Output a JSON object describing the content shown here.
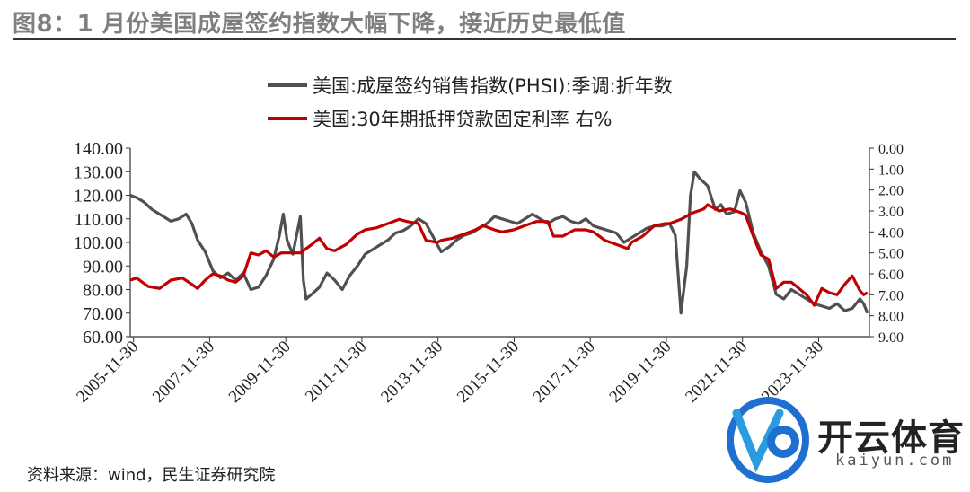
{
  "header": {
    "title": "图8：1 月份美国成屋签约指数大幅下降，接近历史最低值"
  },
  "footer": {
    "source": "资料来源：wind，民生证券研究院"
  },
  "watermark": {
    "brand": "开云体育",
    "sub": "kaiyun.com"
  },
  "chart_data": {
    "type": "line",
    "legend_placement": "top-center",
    "grid": false,
    "x_tick_labels": [
      "2005-11-30",
      "2007-11-30",
      "2009-11-30",
      "2011-11-30",
      "2013-11-30",
      "2015-11-30",
      "2017-11-30",
      "2019-11-30",
      "2021-11-30",
      "2023-11-30"
    ],
    "x_range": [
      2005.83,
      2025.25
    ],
    "left_axis": {
      "range": [
        60,
        140
      ],
      "ticks": [
        "60.00",
        "70.00",
        "80.00",
        "90.00",
        "100.00",
        "110.00",
        "120.00",
        "130.00",
        "140.00"
      ]
    },
    "right_axis": {
      "range": [
        0,
        9
      ],
      "inverted": true,
      "ticks": [
        "0.00",
        "1.00",
        "2.00",
        "3.00",
        "4.00",
        "5.00",
        "6.00",
        "7.00",
        "8.00",
        "9.00"
      ]
    },
    "series": [
      {
        "name": "美国:成屋签约销售指数(PHSI):季调:折年数",
        "axis": "left",
        "color": "#505050",
        "points": [
          [
            2005.83,
            120
          ],
          [
            2006.0,
            119
          ],
          [
            2006.2,
            117
          ],
          [
            2006.4,
            114
          ],
          [
            2006.6,
            112
          ],
          [
            2006.9,
            109
          ],
          [
            2007.1,
            110
          ],
          [
            2007.3,
            112
          ],
          [
            2007.45,
            108
          ],
          [
            2007.6,
            101
          ],
          [
            2007.8,
            96
          ],
          [
            2008.0,
            88
          ],
          [
            2008.2,
            85
          ],
          [
            2008.4,
            87
          ],
          [
            2008.6,
            84
          ],
          [
            2008.8,
            87
          ],
          [
            2009.0,
            80
          ],
          [
            2009.2,
            81
          ],
          [
            2009.4,
            86
          ],
          [
            2009.6,
            93
          ],
          [
            2009.75,
            103
          ],
          [
            2009.85,
            112
          ],
          [
            2009.95,
            101
          ],
          [
            2010.1,
            95
          ],
          [
            2010.3,
            111
          ],
          [
            2010.38,
            84
          ],
          [
            2010.45,
            76
          ],
          [
            2010.6,
            78
          ],
          [
            2010.8,
            81
          ],
          [
            2011.0,
            87
          ],
          [
            2011.2,
            84
          ],
          [
            2011.4,
            80
          ],
          [
            2011.6,
            86
          ],
          [
            2011.8,
            90
          ],
          [
            2012.0,
            95
          ],
          [
            2012.2,
            97
          ],
          [
            2012.4,
            99
          ],
          [
            2012.6,
            101
          ],
          [
            2012.8,
            104
          ],
          [
            2013.0,
            105
          ],
          [
            2013.2,
            107
          ],
          [
            2013.4,
            110
          ],
          [
            2013.6,
            108
          ],
          [
            2013.8,
            102
          ],
          [
            2014.0,
            96
          ],
          [
            2014.2,
            98
          ],
          [
            2014.4,
            101
          ],
          [
            2014.6,
            103
          ],
          [
            2014.8,
            104
          ],
          [
            2015.0,
            106
          ],
          [
            2015.2,
            108
          ],
          [
            2015.4,
            111
          ],
          [
            2015.6,
            110
          ],
          [
            2015.8,
            109
          ],
          [
            2016.0,
            108
          ],
          [
            2016.2,
            110
          ],
          [
            2016.4,
            112
          ],
          [
            2016.6,
            110
          ],
          [
            2016.8,
            108
          ],
          [
            2017.0,
            110
          ],
          [
            2017.2,
            111
          ],
          [
            2017.4,
            109
          ],
          [
            2017.6,
            108
          ],
          [
            2017.8,
            110
          ],
          [
            2018.0,
            107
          ],
          [
            2018.2,
            106
          ],
          [
            2018.4,
            105
          ],
          [
            2018.6,
            104
          ],
          [
            2018.8,
            100
          ],
          [
            2019.0,
            102
          ],
          [
            2019.2,
            104
          ],
          [
            2019.4,
            106
          ],
          [
            2019.6,
            107
          ],
          [
            2019.8,
            107
          ],
          [
            2020.0,
            108
          ],
          [
            2020.15,
            103
          ],
          [
            2020.3,
            70
          ],
          [
            2020.45,
            90
          ],
          [
            2020.55,
            120
          ],
          [
            2020.65,
            130
          ],
          [
            2020.8,
            127
          ],
          [
            2021.0,
            124
          ],
          [
            2021.2,
            114
          ],
          [
            2021.35,
            116
          ],
          [
            2021.5,
            112
          ],
          [
            2021.7,
            113
          ],
          [
            2021.85,
            122
          ],
          [
            2022.0,
            117
          ],
          [
            2022.2,
            104
          ],
          [
            2022.4,
            96
          ],
          [
            2022.6,
            90
          ],
          [
            2022.8,
            78
          ],
          [
            2023.0,
            76
          ],
          [
            2023.2,
            80
          ],
          [
            2023.4,
            78
          ],
          [
            2023.6,
            76
          ],
          [
            2023.8,
            74
          ],
          [
            2024.0,
            73
          ],
          [
            2024.2,
            72
          ],
          [
            2024.4,
            74
          ],
          [
            2024.6,
            71
          ],
          [
            2024.8,
            72
          ],
          [
            2025.0,
            76
          ],
          [
            2025.1,
            74
          ],
          [
            2025.2,
            70
          ]
        ]
      },
      {
        "name": "美国:30年期抵押贷款固定利率 右%",
        "axis": "right",
        "color": "#c00000",
        "points": [
          [
            2005.83,
            6.3
          ],
          [
            2006.0,
            6.2
          ],
          [
            2006.3,
            6.6
          ],
          [
            2006.6,
            6.7
          ],
          [
            2006.9,
            6.3
          ],
          [
            2007.2,
            6.2
          ],
          [
            2007.45,
            6.5
          ],
          [
            2007.6,
            6.7
          ],
          [
            2007.8,
            6.3
          ],
          [
            2008.0,
            6.0
          ],
          [
            2008.2,
            6.1
          ],
          [
            2008.4,
            6.3
          ],
          [
            2008.6,
            6.4
          ],
          [
            2008.8,
            6.1
          ],
          [
            2009.0,
            5.0
          ],
          [
            2009.2,
            5.1
          ],
          [
            2009.4,
            4.9
          ],
          [
            2009.6,
            5.2
          ],
          [
            2009.8,
            5.0
          ],
          [
            2010.0,
            5.0
          ],
          [
            2010.3,
            5.0
          ],
          [
            2010.6,
            4.6
          ],
          [
            2010.8,
            4.3
          ],
          [
            2011.0,
            4.8
          ],
          [
            2011.2,
            4.9
          ],
          [
            2011.5,
            4.6
          ],
          [
            2011.8,
            4.1
          ],
          [
            2012.0,
            3.9
          ],
          [
            2012.3,
            3.8
          ],
          [
            2012.6,
            3.6
          ],
          [
            2012.9,
            3.4
          ],
          [
            2013.1,
            3.5
          ],
          [
            2013.4,
            3.6
          ],
          [
            2013.6,
            4.4
          ],
          [
            2013.9,
            4.5
          ],
          [
            2014.0,
            4.4
          ],
          [
            2014.3,
            4.3
          ],
          [
            2014.6,
            4.1
          ],
          [
            2014.9,
            3.9
          ],
          [
            2015.1,
            3.7
          ],
          [
            2015.4,
            3.9
          ],
          [
            2015.6,
            4.0
          ],
          [
            2015.9,
            3.9
          ],
          [
            2016.2,
            3.7
          ],
          [
            2016.5,
            3.5
          ],
          [
            2016.8,
            3.5
          ],
          [
            2016.95,
            4.2
          ],
          [
            2017.2,
            4.2
          ],
          [
            2017.5,
            3.9
          ],
          [
            2017.8,
            3.9
          ],
          [
            2018.0,
            4.0
          ],
          [
            2018.3,
            4.4
          ],
          [
            2018.6,
            4.6
          ],
          [
            2018.9,
            4.8
          ],
          [
            2019.0,
            4.5
          ],
          [
            2019.3,
            4.2
          ],
          [
            2019.6,
            3.7
          ],
          [
            2019.9,
            3.6
          ],
          [
            2020.0,
            3.6
          ],
          [
            2020.3,
            3.4
          ],
          [
            2020.6,
            3.1
          ],
          [
            2020.9,
            2.9
          ],
          [
            2021.0,
            2.7
          ],
          [
            2021.3,
            3.0
          ],
          [
            2021.6,
            2.9
          ],
          [
            2021.9,
            3.1
          ],
          [
            2022.0,
            3.2
          ],
          [
            2022.2,
            4.2
          ],
          [
            2022.4,
            5.1
          ],
          [
            2022.6,
            5.3
          ],
          [
            2022.8,
            6.7
          ],
          [
            2023.0,
            6.4
          ],
          [
            2023.2,
            6.4
          ],
          [
            2023.4,
            6.7
          ],
          [
            2023.6,
            7.0
          ],
          [
            2023.8,
            7.5
          ],
          [
            2024.0,
            6.7
          ],
          [
            2024.2,
            6.9
          ],
          [
            2024.4,
            7.0
          ],
          [
            2024.6,
            6.5
          ],
          [
            2024.8,
            6.1
          ],
          [
            2025.0,
            6.8
          ],
          [
            2025.1,
            7.0
          ],
          [
            2025.2,
            6.9
          ]
        ]
      }
    ]
  }
}
